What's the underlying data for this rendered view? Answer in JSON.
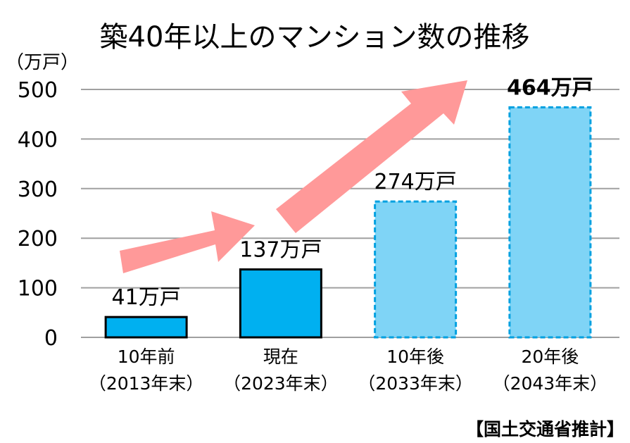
{
  "chart_data": {
    "type": "bar",
    "title": "築40年以上のマンション数の推移",
    "y_unit": "（万戸）",
    "ylim": [
      0,
      500
    ],
    "yticks": [
      0,
      100,
      200,
      300,
      400,
      500
    ],
    "grid": true,
    "categories": [
      {
        "line1": "10年前",
        "line2": "（2013年末）"
      },
      {
        "line1": "現在",
        "line2": "（2023年末）"
      },
      {
        "line1": "10年後",
        "line2": "（2033年末）"
      },
      {
        "line1": "20年後",
        "line2": "（2043年末）"
      }
    ],
    "values": [
      41,
      137,
      274,
      464
    ],
    "data_labels": [
      "41万戸",
      "137万戸",
      "274万戸",
      "464万戸"
    ],
    "projected": [
      false,
      false,
      true,
      true
    ],
    "colors": {
      "actual_fill": "#00b0f0",
      "actual_border": "#000000",
      "projected_fill": "#7fd4f6",
      "projected_border": "#00a0e0",
      "arrow": "#ff9999"
    },
    "source": "【国土交通省推計】"
  }
}
